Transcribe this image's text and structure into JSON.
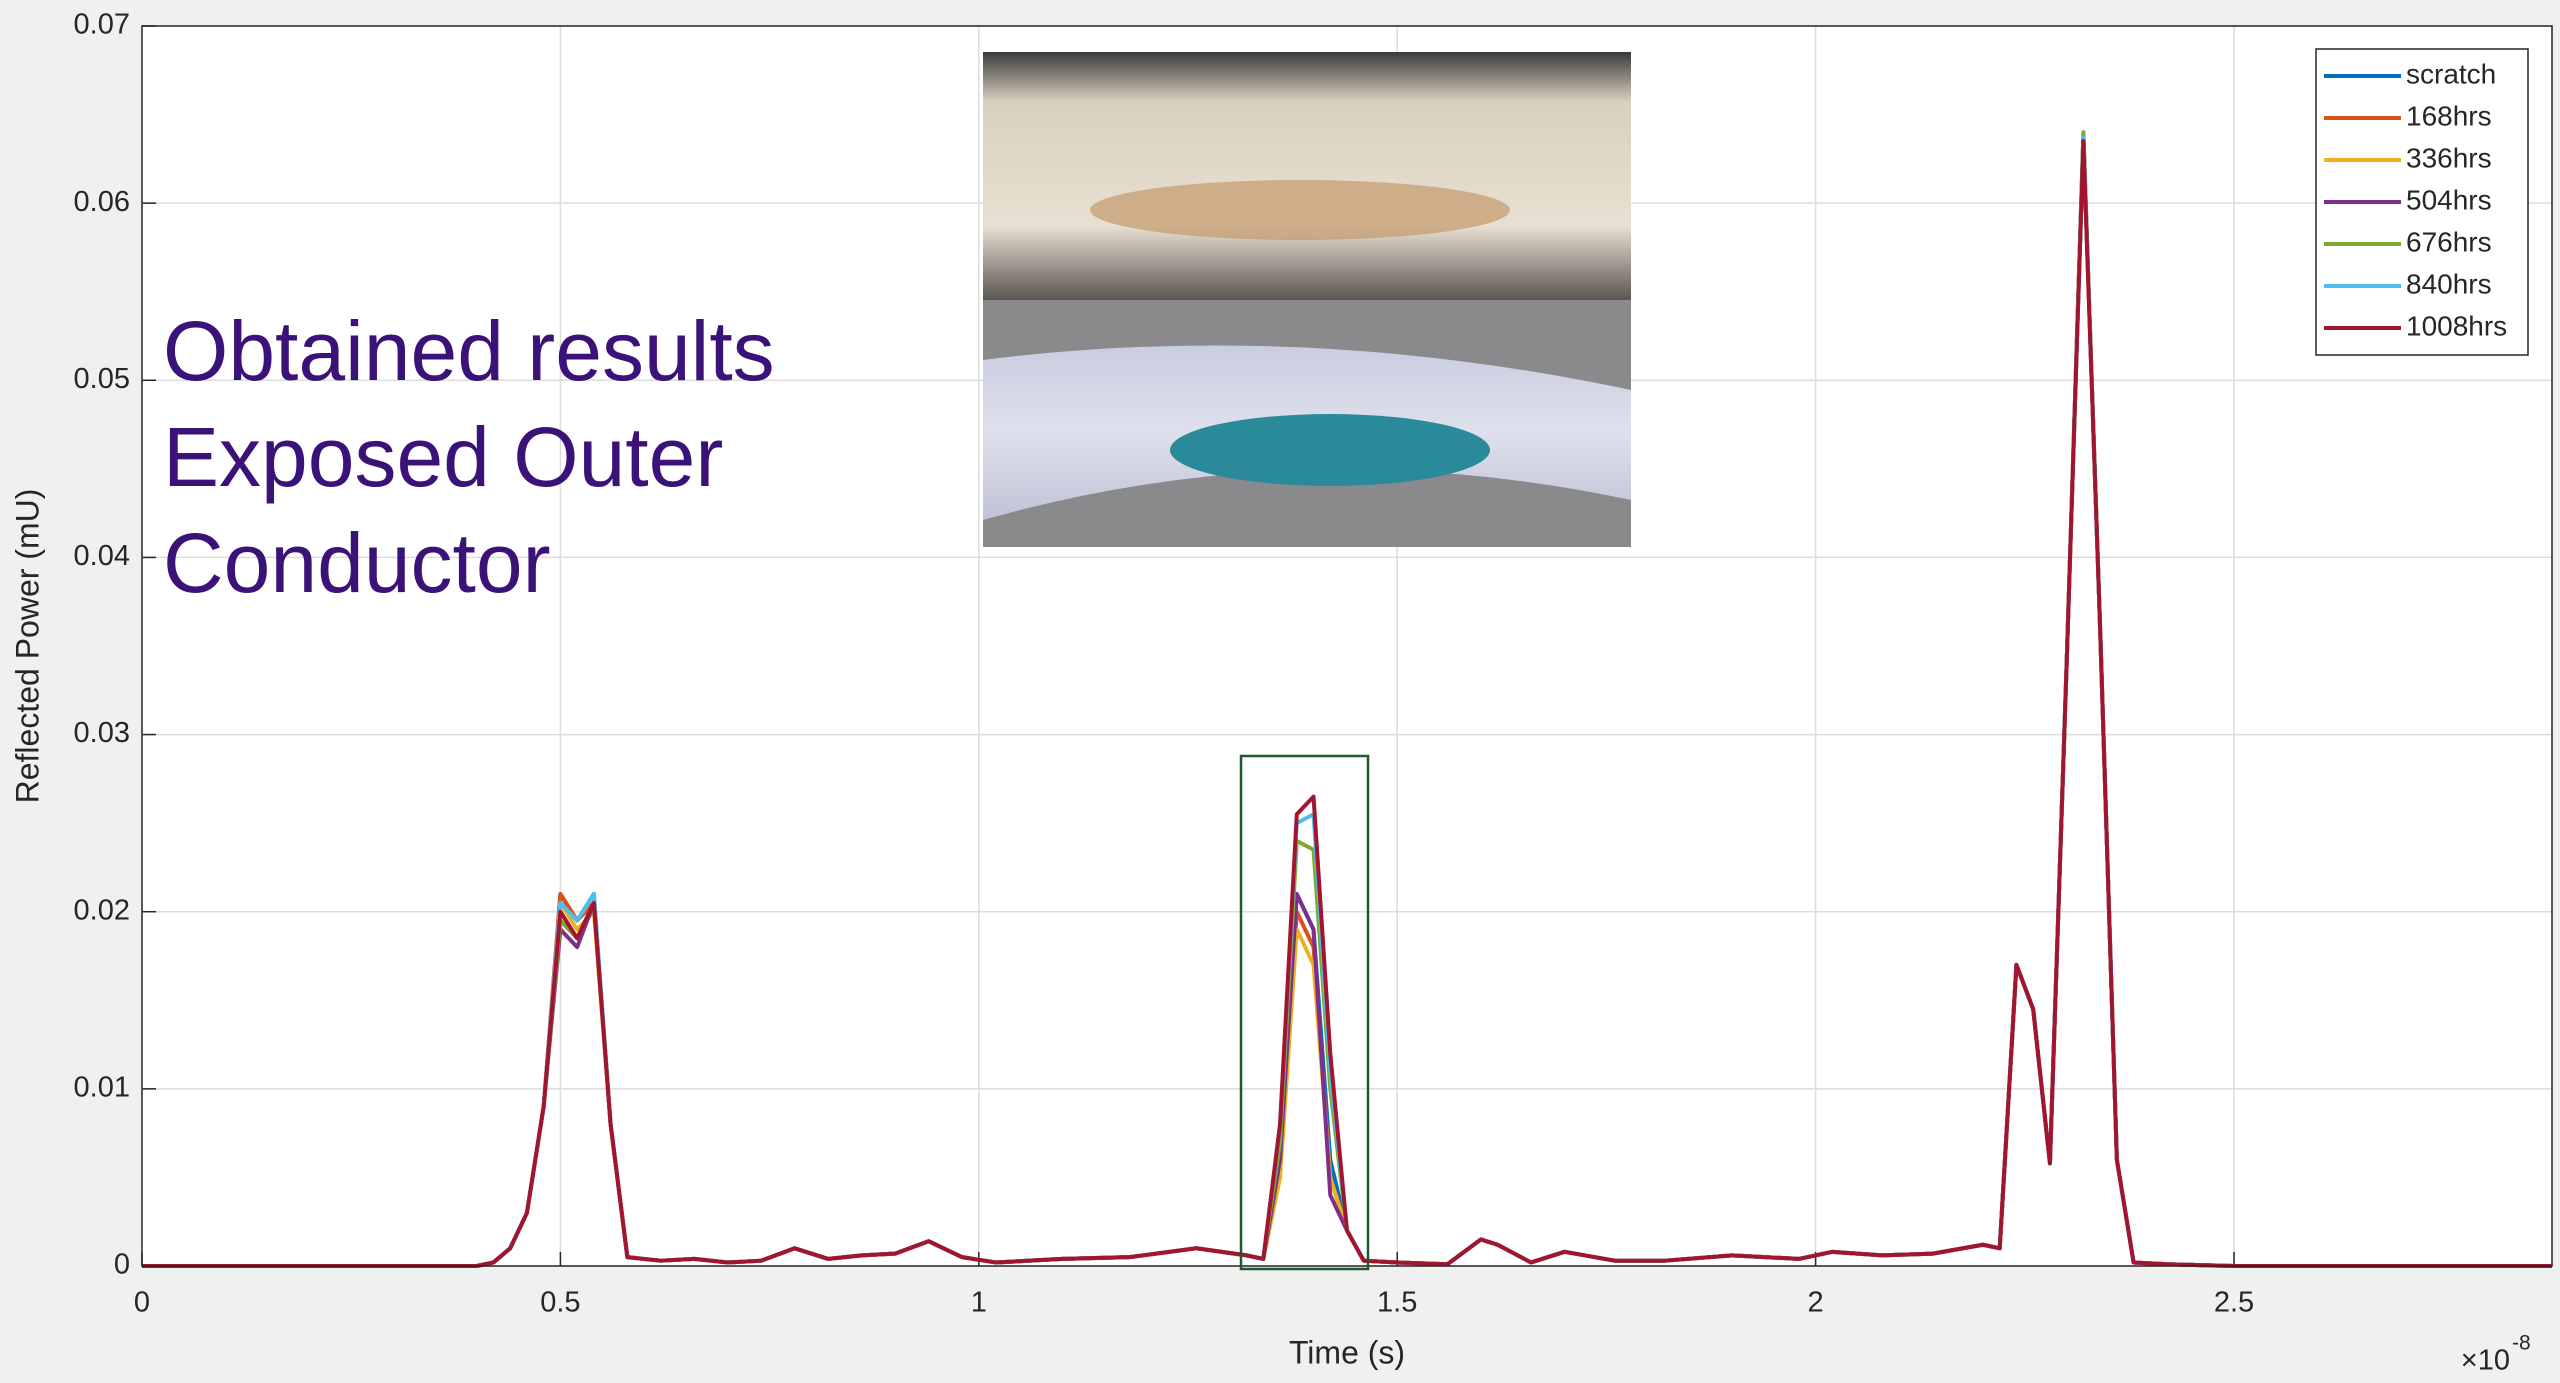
{
  "chart_data": {
    "type": "line",
    "overlay_text": [
      "Obtained results",
      "Exposed Outer",
      "Conductor"
    ],
    "xlabel": "Time (s)",
    "ylabel": "Reflected Power (mU)",
    "x_multiplier": {
      "base": "×10",
      "exponent": "-8"
    },
    "xlim": [
      0,
      2.88
    ],
    "xticks": [
      0,
      0.5,
      1,
      1.5,
      2,
      2.5
    ],
    "ylim": [
      0,
      0.07
    ],
    "yticks": [
      0,
      0.01,
      0.02,
      0.03,
      0.04,
      0.05,
      0.06,
      0.07
    ],
    "grid": true,
    "legend": "top-right",
    "x": [
      0,
      0.2,
      0.4,
      0.42,
      0.44,
      0.46,
      0.48,
      0.5,
      0.52,
      0.54,
      0.56,
      0.58,
      0.62,
      0.66,
      0.7,
      0.74,
      0.78,
      0.82,
      0.86,
      0.9,
      0.94,
      0.98,
      1.02,
      1.1,
      1.18,
      1.26,
      1.32,
      1.34,
      1.36,
      1.38,
      1.4,
      1.42,
      1.44,
      1.46,
      1.5,
      1.56,
      1.6,
      1.62,
      1.66,
      1.7,
      1.76,
      1.82,
      1.9,
      1.98,
      2.02,
      2.08,
      2.14,
      2.2,
      2.22,
      2.24,
      2.26,
      2.28,
      2.3,
      2.32,
      2.34,
      2.36,
      2.38,
      2.42,
      2.5,
      2.7,
      2.88
    ],
    "series": [
      {
        "name": "scratch",
        "color": "#0072bd",
        "values": [
          0,
          0,
          0,
          0.0002,
          0.001,
          0.003,
          0.009,
          0.021,
          0.0195,
          0.021,
          0.008,
          0.0005,
          0.0003,
          0.0004,
          0.0002,
          0.0003,
          0.001,
          0.0004,
          0.0006,
          0.0007,
          0.0014,
          0.0005,
          0.0002,
          0.0004,
          0.0005,
          0.001,
          0.0006,
          0.0004,
          0.006,
          0.021,
          0.019,
          0.006,
          0.002,
          0.0003,
          0.0002,
          0.0001,
          0.0015,
          0.0012,
          0.0002,
          0.0008,
          0.0003,
          0.0003,
          0.0006,
          0.0004,
          0.0008,
          0.0006,
          0.0007,
          0.0012,
          0.001,
          0.017,
          0.0145,
          0.0058,
          0.034,
          0.0638,
          0.036,
          0.006,
          0.0002,
          0.0001,
          0,
          0,
          0
        ]
      },
      {
        "name": "168hrs",
        "color": "#d95319",
        "values": [
          0,
          0,
          0,
          0.0002,
          0.001,
          0.003,
          0.009,
          0.021,
          0.0195,
          0.0205,
          0.008,
          0.0005,
          0.0003,
          0.0004,
          0.0002,
          0.0003,
          0.001,
          0.0004,
          0.0006,
          0.0007,
          0.0014,
          0.0005,
          0.0002,
          0.0004,
          0.0005,
          0.001,
          0.0006,
          0.0004,
          0.006,
          0.02,
          0.018,
          0.005,
          0.002,
          0.0003,
          0.0002,
          0.0001,
          0.0015,
          0.0012,
          0.0002,
          0.0008,
          0.0003,
          0.0003,
          0.0006,
          0.0004,
          0.0008,
          0.0006,
          0.0007,
          0.0012,
          0.001,
          0.017,
          0.0145,
          0.0058,
          0.034,
          0.0638,
          0.036,
          0.006,
          0.0002,
          0.0001,
          0,
          0,
          0
        ]
      },
      {
        "name": "336hrs",
        "color": "#edb120",
        "values": [
          0,
          0,
          0,
          0.0002,
          0.001,
          0.003,
          0.009,
          0.0205,
          0.019,
          0.02,
          0.008,
          0.0005,
          0.0003,
          0.0004,
          0.0002,
          0.0003,
          0.001,
          0.0004,
          0.0006,
          0.0007,
          0.0014,
          0.0005,
          0.0002,
          0.0004,
          0.0005,
          0.001,
          0.0006,
          0.0004,
          0.005,
          0.019,
          0.017,
          0.005,
          0.002,
          0.0003,
          0.0002,
          0.0001,
          0.0015,
          0.0012,
          0.0002,
          0.0008,
          0.0003,
          0.0003,
          0.0006,
          0.0004,
          0.0008,
          0.0006,
          0.0007,
          0.0012,
          0.001,
          0.017,
          0.0145,
          0.0058,
          0.034,
          0.064,
          0.036,
          0.006,
          0.0002,
          0.0001,
          0,
          0,
          0
        ]
      },
      {
        "name": "504hrs",
        "color": "#7e2f8e",
        "values": [
          0,
          0,
          0,
          0.0002,
          0.001,
          0.003,
          0.009,
          0.019,
          0.018,
          0.0205,
          0.008,
          0.0005,
          0.0003,
          0.0004,
          0.0002,
          0.0003,
          0.001,
          0.0004,
          0.0006,
          0.0007,
          0.0014,
          0.0005,
          0.0002,
          0.0004,
          0.0005,
          0.001,
          0.0006,
          0.0004,
          0.006,
          0.021,
          0.019,
          0.004,
          0.002,
          0.0003,
          0.0002,
          0.0001,
          0.0015,
          0.0012,
          0.0002,
          0.0008,
          0.0003,
          0.0003,
          0.0006,
          0.0004,
          0.0008,
          0.0006,
          0.0007,
          0.0012,
          0.001,
          0.017,
          0.0145,
          0.0058,
          0.034,
          0.0638,
          0.036,
          0.006,
          0.0002,
          0.0001,
          0,
          0,
          0
        ]
      },
      {
        "name": "676hrs",
        "color": "#77ac30",
        "values": [
          0,
          0,
          0,
          0.0002,
          0.001,
          0.003,
          0.009,
          0.0195,
          0.0185,
          0.0205,
          0.008,
          0.0005,
          0.0003,
          0.0004,
          0.0002,
          0.0003,
          0.001,
          0.0004,
          0.0006,
          0.0007,
          0.0014,
          0.0005,
          0.0002,
          0.0004,
          0.0005,
          0.001,
          0.0006,
          0.0004,
          0.007,
          0.024,
          0.0235,
          0.01,
          0.002,
          0.0003,
          0.0002,
          0.0001,
          0.0015,
          0.0012,
          0.0002,
          0.0008,
          0.0003,
          0.0003,
          0.0006,
          0.0004,
          0.0008,
          0.0006,
          0.0007,
          0.0012,
          0.001,
          0.017,
          0.0145,
          0.0058,
          0.034,
          0.064,
          0.036,
          0.006,
          0.0002,
          0.0001,
          0,
          0,
          0
        ]
      },
      {
        "name": "840hrs",
        "color": "#4dbeee",
        "values": [
          0,
          0,
          0,
          0.0002,
          0.001,
          0.003,
          0.009,
          0.0205,
          0.0195,
          0.021,
          0.008,
          0.0005,
          0.0003,
          0.0004,
          0.0002,
          0.0003,
          0.001,
          0.0004,
          0.0006,
          0.0007,
          0.0014,
          0.0005,
          0.0002,
          0.0004,
          0.0005,
          0.001,
          0.0006,
          0.0004,
          0.008,
          0.025,
          0.0255,
          0.011,
          0.002,
          0.0003,
          0.0002,
          0.0001,
          0.0015,
          0.0012,
          0.0002,
          0.0008,
          0.0003,
          0.0003,
          0.0006,
          0.0004,
          0.0008,
          0.0006,
          0.0007,
          0.0012,
          0.001,
          0.017,
          0.0145,
          0.0058,
          0.034,
          0.0637,
          0.036,
          0.006,
          0.0002,
          0.0001,
          0,
          0,
          0
        ]
      },
      {
        "name": "1008hrs",
        "color": "#a2142f",
        "values": [
          0,
          0,
          0,
          0.0002,
          0.001,
          0.003,
          0.009,
          0.02,
          0.0185,
          0.0205,
          0.008,
          0.0005,
          0.0003,
          0.0004,
          0.0002,
          0.0003,
          0.001,
          0.0004,
          0.0006,
          0.0007,
          0.0014,
          0.0005,
          0.0002,
          0.0004,
          0.0005,
          0.001,
          0.0006,
          0.0004,
          0.008,
          0.0255,
          0.0265,
          0.012,
          0.002,
          0.0003,
          0.0002,
          0.0001,
          0.0015,
          0.0012,
          0.0002,
          0.0008,
          0.0003,
          0.0003,
          0.0006,
          0.0004,
          0.0008,
          0.0006,
          0.0007,
          0.0012,
          0.001,
          0.017,
          0.0145,
          0.0058,
          0.034,
          0.0635,
          0.036,
          0.006,
          0.0002,
          0.0001,
          0,
          0,
          0
        ]
      }
    ]
  }
}
